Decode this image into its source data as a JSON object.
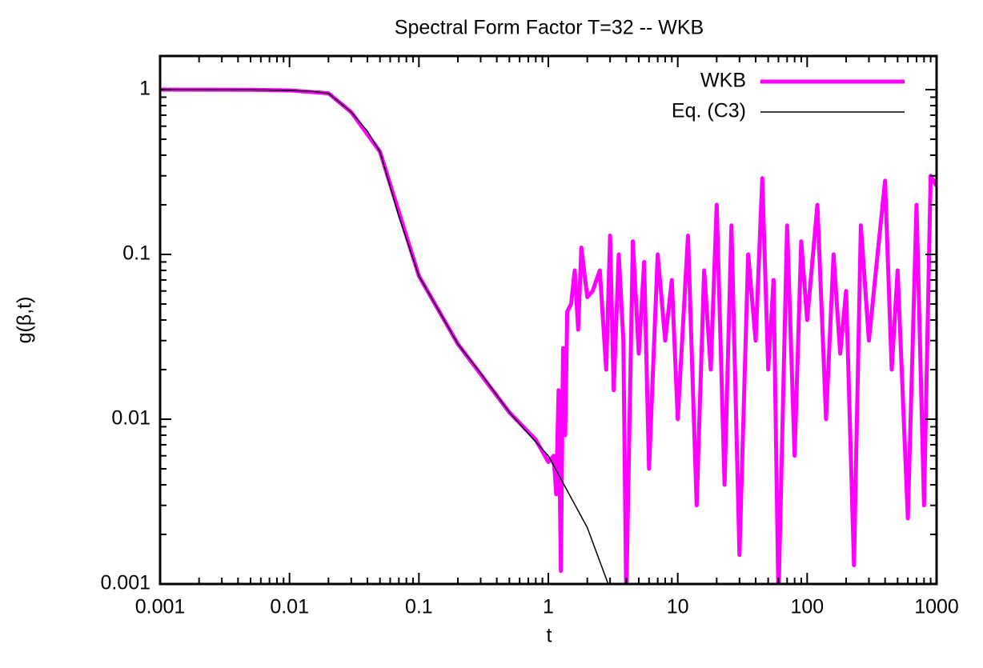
{
  "chart_data": {
    "type": "line",
    "title": "Spectral Form Factor T=32 -- WKB",
    "x_label": "t",
    "y_label": "g(β,t)",
    "log_x": true,
    "log_y": true,
    "xlim": [
      0.001,
      1000
    ],
    "ylim": [
      0.001,
      1.6
    ],
    "xticks": [
      0.001,
      0.01,
      0.1,
      1,
      10,
      100,
      1000
    ],
    "yticks": [
      0.001,
      0.01,
      0.1,
      1
    ],
    "legend": "upper right",
    "series": [
      {
        "name": "WKB",
        "color": "#ff00ff",
        "x": [
          0.001,
          0.005,
          0.01,
          0.02,
          0.03,
          0.05,
          0.1,
          0.2,
          0.5,
          0.8,
          1.0,
          1.1,
          1.15,
          1.2,
          1.25,
          1.3,
          1.35,
          1.4,
          1.5,
          1.6,
          1.7,
          1.8,
          2.0,
          2.2,
          2.5,
          2.8,
          3.0,
          3.2,
          3.5,
          3.8,
          4.0,
          4.5,
          5,
          5.5,
          6,
          7,
          8,
          9,
          10,
          12,
          14,
          16,
          18,
          20,
          23,
          26,
          30,
          35,
          40,
          45,
          50,
          55,
          60,
          70,
          80,
          90,
          100,
          120,
          140,
          160,
          180,
          200,
          230,
          260,
          300,
          350,
          400,
          450,
          500,
          600,
          700,
          800,
          900,
          1000
        ],
        "values": [
          1,
          0.998,
          0.99,
          0.95,
          0.73,
          0.42,
          0.074,
          0.0286,
          0.011,
          0.0075,
          0.0055,
          0.006,
          0.0035,
          0.015,
          0.0012,
          0.027,
          0.008,
          0.045,
          0.05,
          0.08,
          0.035,
          0.11,
          0.055,
          0.06,
          0.08,
          0.02,
          0.13,
          0.015,
          0.1,
          0.03,
          0.0008,
          0.12,
          0.025,
          0.09,
          0.005,
          0.1,
          0.03,
          0.07,
          0.01,
          0.13,
          0.003,
          0.08,
          0.02,
          0.2,
          0.004,
          0.15,
          0.0015,
          0.1,
          0.03,
          0.29,
          0.02,
          0.07,
          0.0008,
          0.15,
          0.006,
          0.12,
          0.04,
          0.2,
          0.01,
          0.1,
          0.025,
          0.06,
          0.0013,
          0.15,
          0.03,
          0.1,
          0.28,
          0.02,
          0.08,
          0.0025,
          0.2,
          0.003,
          0.3,
          0.26
        ]
      },
      {
        "name": "Eq. (C3)",
        "color": "#000000",
        "x": [
          0.001,
          0.005,
          0.01,
          0.015,
          0.02,
          0.03,
          0.04,
          0.05,
          0.07,
          0.1,
          0.2,
          0.3,
          0.5,
          1,
          2,
          2.9
        ],
        "values": [
          1,
          0.998,
          0.99,
          0.975,
          0.95,
          0.73,
          0.56,
          0.42,
          0.17,
          0.074,
          0.0286,
          0.019,
          0.011,
          0.006,
          0.0022,
          0.001
        ]
      }
    ]
  }
}
